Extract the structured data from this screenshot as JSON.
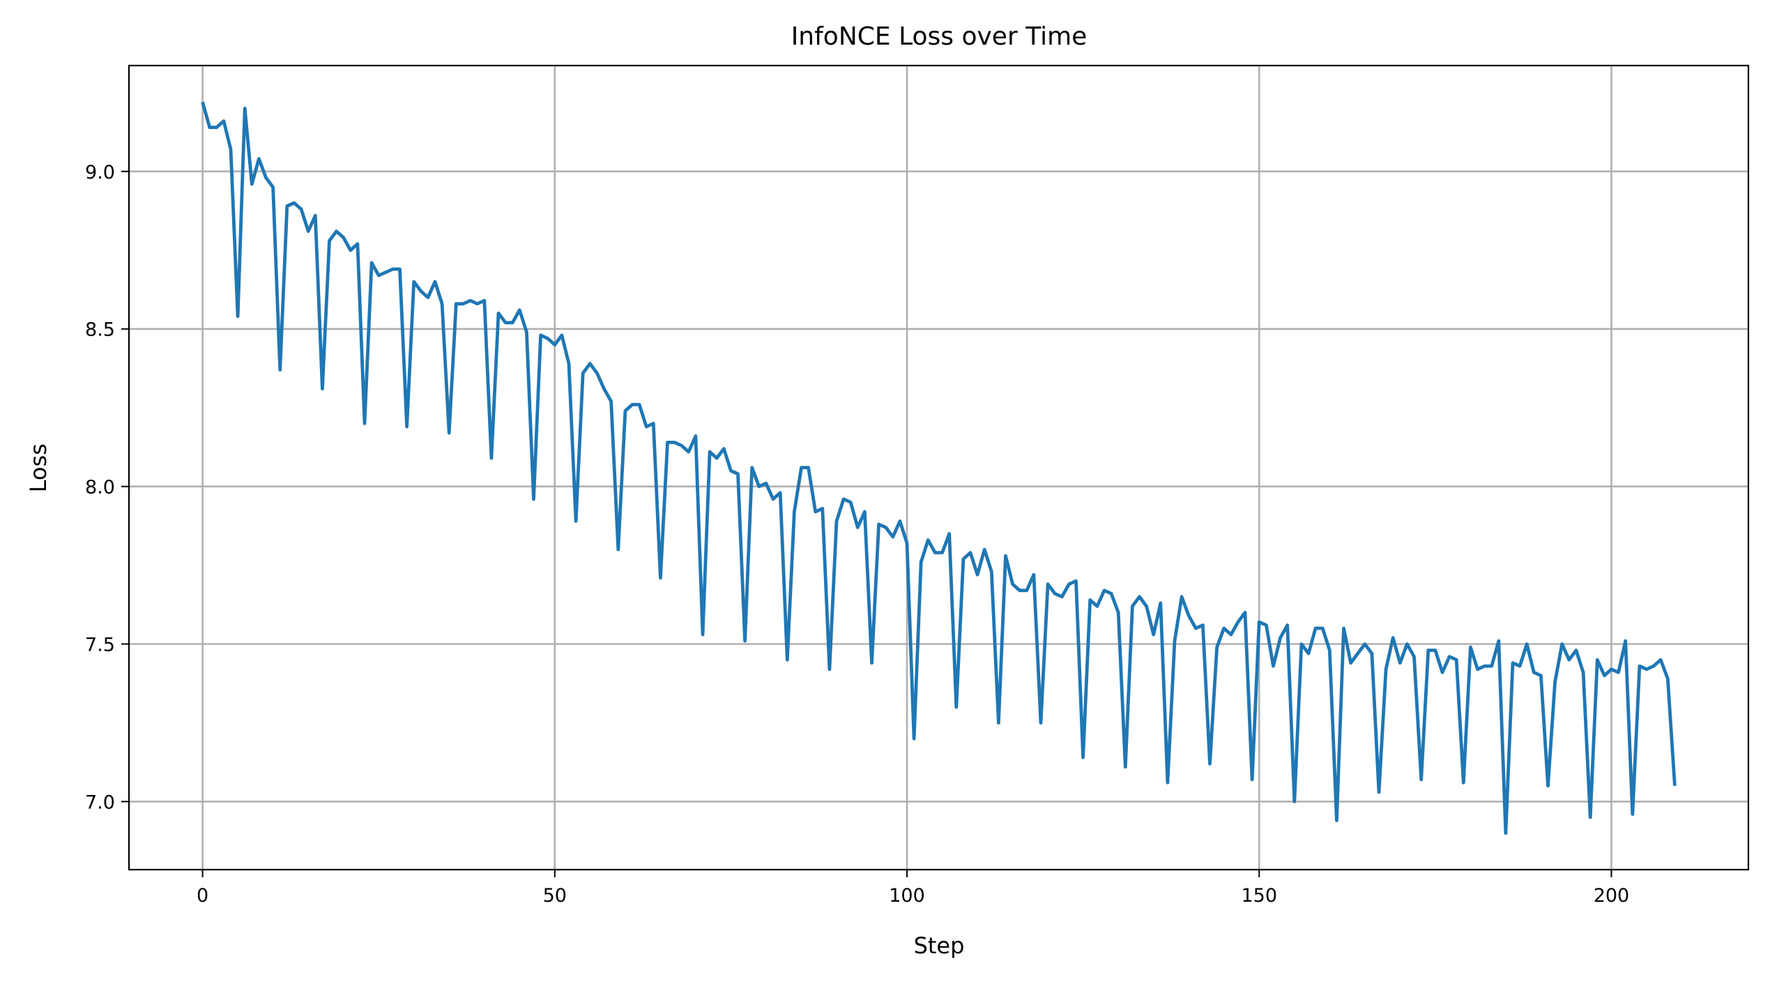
{
  "chart_data": {
    "type": "line",
    "title": "InfoNCE Loss over Time",
    "xlabel": "Step",
    "ylabel": "Loss",
    "xlim": [
      -10.45,
      219.45
    ],
    "ylim": [
      6.784,
      9.336
    ],
    "xticks": [
      0,
      50,
      100,
      150,
      200
    ],
    "yticks": [
      7.0,
      7.5,
      8.0,
      8.5,
      9.0
    ],
    "xtick_labels": [
      "0",
      "50",
      "100",
      "150",
      "200"
    ],
    "ytick_labels": [
      "7.0",
      "7.5",
      "8.0",
      "8.5",
      "9.0"
    ],
    "grid": true,
    "line_color": "#1f77b4",
    "grid_color": "#b0b0b0",
    "x_start": 0,
    "values": [
      9.22,
      9.14,
      9.14,
      9.16,
      9.07,
      8.54,
      9.2,
      8.96,
      9.04,
      8.98,
      8.95,
      8.37,
      8.89,
      8.9,
      8.88,
      8.81,
      8.86,
      8.31,
      8.78,
      8.81,
      8.79,
      8.75,
      8.77,
      8.2,
      8.71,
      8.67,
      8.68,
      8.69,
      8.69,
      8.19,
      8.65,
      8.62,
      8.6,
      8.65,
      8.58,
      8.17,
      8.58,
      8.58,
      8.59,
      8.58,
      8.59,
      8.09,
      8.55,
      8.52,
      8.52,
      8.56,
      8.49,
      7.96,
      8.48,
      8.47,
      8.45,
      8.48,
      8.39,
      7.89,
      8.36,
      8.39,
      8.36,
      8.31,
      8.27,
      7.8,
      8.24,
      8.26,
      8.26,
      8.19,
      8.2,
      7.71,
      8.14,
      8.14,
      8.13,
      8.11,
      8.16,
      7.53,
      8.11,
      8.09,
      8.12,
      8.05,
      8.04,
      7.51,
      8.06,
      8.0,
      8.01,
      7.96,
      7.98,
      7.45,
      7.92,
      8.06,
      8.06,
      7.92,
      7.93,
      7.42,
      7.89,
      7.96,
      7.95,
      7.87,
      7.92,
      7.44,
      7.88,
      7.87,
      7.84,
      7.89,
      7.82,
      7.2,
      7.76,
      7.83,
      7.79,
      7.79,
      7.85,
      7.3,
      7.77,
      7.79,
      7.72,
      7.8,
      7.73,
      7.25,
      7.78,
      7.69,
      7.67,
      7.67,
      7.72,
      7.25,
      7.69,
      7.66,
      7.65,
      7.69,
      7.7,
      7.14,
      7.64,
      7.62,
      7.67,
      7.66,
      7.6,
      7.11,
      7.62,
      7.65,
      7.62,
      7.53,
      7.63,
      7.06,
      7.51,
      7.65,
      7.59,
      7.55,
      7.56,
      7.12,
      7.49,
      7.55,
      7.53,
      7.57,
      7.6,
      7.07,
      7.57,
      7.56,
      7.43,
      7.52,
      7.56,
      7.0,
      7.5,
      7.47,
      7.55,
      7.55,
      7.48,
      6.94,
      7.55,
      7.44,
      7.47,
      7.5,
      7.47,
      7.03,
      7.42,
      7.52,
      7.44,
      7.5,
      7.46,
      7.07,
      7.48,
      7.48,
      7.41,
      7.46,
      7.45,
      7.06,
      7.49,
      7.42,
      7.43,
      7.43,
      7.51,
      6.9,
      7.44,
      7.43,
      7.5,
      7.41,
      7.4,
      7.05,
      7.38,
      7.5,
      7.45,
      7.48,
      7.41,
      6.95,
      7.45,
      7.4,
      7.42,
      7.41,
      7.51,
      6.96,
      7.43,
      7.42,
      7.43,
      7.45,
      7.39,
      7.05
    ]
  }
}
